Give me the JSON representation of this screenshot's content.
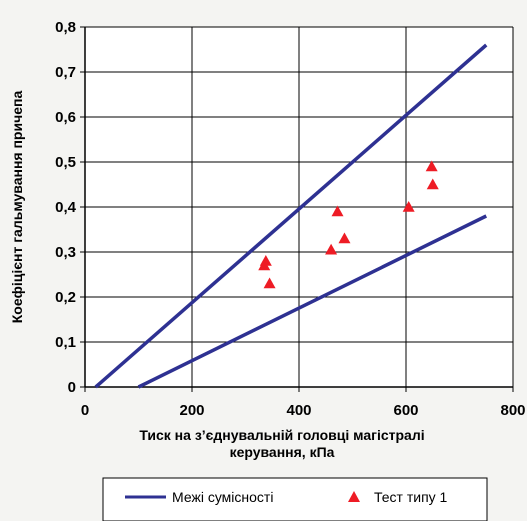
{
  "chart_data": {
    "type": "scatter",
    "title": "",
    "xlabel": "Тиск на з’єднувальній головці магістралі керування, кПа",
    "xlabel_lines": [
      "Тиск на з’єднувальній головці магістралі",
      "керування, кПа"
    ],
    "ylabel": "Коефіцієнт  гальмування  причепа",
    "xlim": [
      0,
      800
    ],
    "ylim": [
      0,
      0.8
    ],
    "x_ticks": [
      0,
      200,
      400,
      600,
      800
    ],
    "x_tick_labels": [
      "0",
      "200",
      "400",
      "600",
      "800"
    ],
    "y_ticks": [
      0,
      0.1,
      0.2,
      0.3,
      0.4,
      0.5,
      0.6,
      0.7,
      0.8
    ],
    "y_tick_labels": [
      "0",
      "0,1",
      "0,2",
      "0,3",
      "0,4",
      "0,5",
      "0,6",
      "0,7",
      "0,8"
    ],
    "grid": true,
    "legend_position": "bottom",
    "series": [
      {
        "name": "Межі сумісності",
        "kind": "line",
        "color": "#2e3192",
        "segments": [
          [
            [
              20,
              0
            ],
            [
              750,
              0.76
            ]
          ],
          [
            [
              100,
              0
            ],
            [
              750,
              0.38
            ]
          ]
        ]
      },
      {
        "name": "Тест типу 1",
        "kind": "scatter",
        "marker": "triangle",
        "color": "#ee1c25",
        "points": [
          [
            335,
            0.27
          ],
          [
            338,
            0.28
          ],
          [
            345,
            0.23
          ],
          [
            460,
            0.305
          ],
          [
            472,
            0.39
          ],
          [
            485,
            0.33
          ],
          [
            605,
            0.4
          ],
          [
            648,
            0.49
          ],
          [
            650,
            0.45
          ]
        ]
      }
    ]
  }
}
